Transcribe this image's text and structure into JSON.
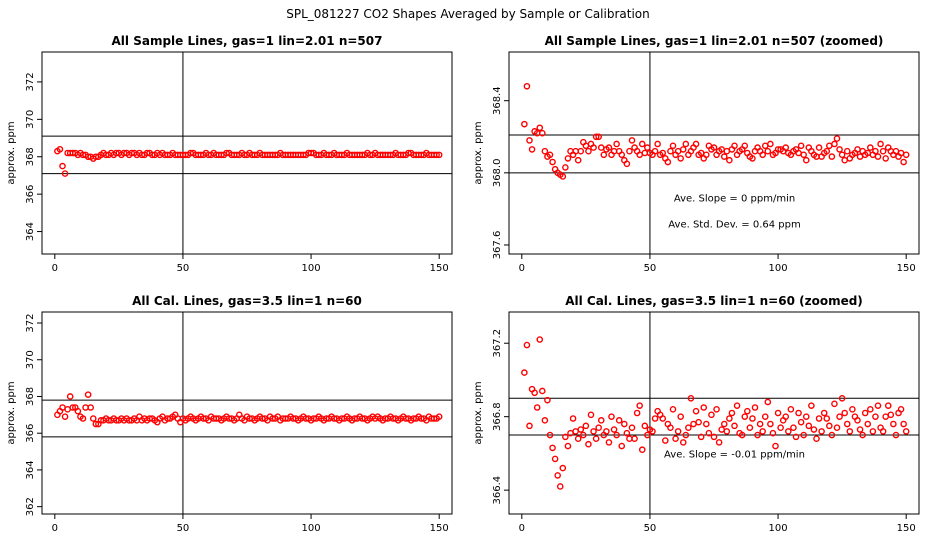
{
  "figure": {
    "main_title": "SPL_081227  CO2 Shapes Averaged by Sample or Calibration",
    "point_color": "#ff0000"
  },
  "chart_data": [
    {
      "type": "scatter",
      "title": "All Sample Lines, gas=1 lin=2.01 n=507",
      "xlabel": "",
      "ylabel": "approx. ppm",
      "xlim": [
        -5,
        155
      ],
      "ylim": [
        362.8,
        373.6
      ],
      "xticks": [
        0,
        50,
        100,
        150
      ],
      "yticks": [
        364,
        366,
        368,
        370,
        372
      ],
      "hlines": [
        369.1,
        367.1
      ],
      "vline": 50,
      "grid": false,
      "annotations": [],
      "x": [
        1,
        2,
        3,
        4,
        5,
        6,
        7,
        8,
        9,
        10,
        11,
        12,
        13,
        14,
        15,
        16,
        17,
        18,
        19,
        20,
        21,
        22,
        23,
        24,
        25,
        26,
        27,
        28,
        29,
        30,
        31,
        32,
        33,
        34,
        35,
        36,
        37,
        38,
        39,
        40,
        41,
        42,
        43,
        44,
        45,
        46,
        47,
        48,
        49,
        50,
        51,
        52,
        53,
        54,
        55,
        56,
        57,
        58,
        59,
        60,
        61,
        62,
        63,
        64,
        65,
        66,
        67,
        68,
        69,
        70,
        71,
        72,
        73,
        74,
        75,
        76,
        77,
        78,
        79,
        80,
        81,
        82,
        83,
        84,
        85,
        86,
        87,
        88,
        89,
        90,
        91,
        92,
        93,
        94,
        95,
        96,
        97,
        98,
        99,
        100,
        101,
        102,
        103,
        104,
        105,
        106,
        107,
        108,
        109,
        110,
        111,
        112,
        113,
        114,
        115,
        116,
        117,
        118,
        119,
        120,
        121,
        122,
        123,
        124,
        125,
        126,
        127,
        128,
        129,
        130,
        131,
        132,
        133,
        134,
        135,
        136,
        137,
        138,
        139,
        140,
        141,
        142,
        143,
        144,
        145,
        146,
        147,
        148,
        149,
        150
      ],
      "y": [
        368.3,
        368.4,
        367.5,
        367.1,
        368.2,
        368.2,
        368.2,
        368.2,
        368.1,
        368.2,
        368.1,
        368.1,
        368.0,
        368.0,
        367.9,
        368.0,
        368.0,
        368.1,
        368.2,
        368.1,
        368.1,
        368.2,
        368.1,
        368.2,
        368.2,
        368.1,
        368.2,
        368.2,
        368.1,
        368.2,
        368.2,
        368.1,
        368.2,
        368.1,
        368.1,
        368.2,
        368.2,
        368.1,
        368.1,
        368.2,
        368.1,
        368.2,
        368.1,
        368.1,
        368.1,
        368.2,
        368.1,
        368.1,
        368.1,
        368.1,
        368.1,
        368.1,
        368.2,
        368.2,
        368.1,
        368.1,
        368.1,
        368.1,
        368.2,
        368.1,
        368.1,
        368.2,
        368.1,
        368.1,
        368.1,
        368.1,
        368.2,
        368.2,
        368.1,
        368.1,
        368.1,
        368.1,
        368.2,
        368.1,
        368.1,
        368.2,
        368.1,
        368.1,
        368.1,
        368.2,
        368.1,
        368.1,
        368.1,
        368.1,
        368.1,
        368.1,
        368.1,
        368.2,
        368.1,
        368.1,
        368.1,
        368.1,
        368.1,
        368.1,
        368.1,
        368.1,
        368.1,
        368.1,
        368.2,
        368.2,
        368.2,
        368.1,
        368.1,
        368.1,
        368.2,
        368.1,
        368.1,
        368.1,
        368.2,
        368.1,
        368.1,
        368.1,
        368.1,
        368.2,
        368.1,
        368.1,
        368.1,
        368.1,
        368.1,
        368.1,
        368.1,
        368.2,
        368.1,
        368.1,
        368.2,
        368.1,
        368.1,
        368.1,
        368.1,
        368.1,
        368.1,
        368.1,
        368.2,
        368.1,
        368.1,
        368.1,
        368.1,
        368.2,
        368.2,
        368.1,
        368.1,
        368.1,
        368.1,
        368.1,
        368.2,
        368.1,
        368.1,
        368.1,
        368.1,
        368.1
      ]
    },
    {
      "type": "scatter",
      "title": "All Sample Lines, gas=1 lin=2.01 n=507 (zoomed)",
      "xlabel": "",
      "ylabel": "approx. ppm",
      "xlim": [
        -5,
        155
      ],
      "ylim": [
        367.55,
        368.67
      ],
      "xticks": [
        0,
        50,
        100,
        150
      ],
      "yticks": [
        367.6,
        368.0,
        368.4
      ],
      "hlines": [
        368.21,
        368.0
      ],
      "vline": 50,
      "grid": false,
      "annotations": [
        "Ave. Slope =  0  ppm/min",
        "Ave. Std. Dev. =  0.64  ppm"
      ],
      "x": [
        1,
        2,
        3,
        4,
        5,
        6,
        7,
        8,
        9,
        10,
        11,
        12,
        13,
        14,
        15,
        16,
        17,
        18,
        19,
        20,
        21,
        22,
        23,
        24,
        25,
        26,
        27,
        28,
        29,
        30,
        31,
        32,
        33,
        34,
        35,
        36,
        37,
        38,
        39,
        40,
        41,
        42,
        43,
        44,
        45,
        46,
        47,
        48,
        49,
        50,
        51,
        52,
        53,
        54,
        55,
        56,
        57,
        58,
        59,
        60,
        61,
        62,
        63,
        64,
        65,
        66,
        67,
        68,
        69,
        70,
        71,
        72,
        73,
        74,
        75,
        76,
        77,
        78,
        79,
        80,
        81,
        82,
        83,
        84,
        85,
        86,
        87,
        88,
        89,
        90,
        91,
        92,
        93,
        94,
        95,
        96,
        97,
        98,
        99,
        100,
        101,
        102,
        103,
        104,
        105,
        106,
        107,
        108,
        109,
        110,
        111,
        112,
        113,
        114,
        115,
        116,
        117,
        118,
        119,
        120,
        121,
        122,
        123,
        124,
        125,
        126,
        127,
        128,
        129,
        130,
        131,
        132,
        133,
        134,
        135,
        136,
        137,
        138,
        139,
        140,
        141,
        142,
        143,
        144,
        145,
        146,
        147,
        148,
        149,
        150
      ],
      "y": [
        368.27,
        368.48,
        368.18,
        368.13,
        368.23,
        368.22,
        368.25,
        368.22,
        368.12,
        368.09,
        368.1,
        368.06,
        368.02,
        368.0,
        367.99,
        367.98,
        368.03,
        368.08,
        368.12,
        368.1,
        368.12,
        368.07,
        368.12,
        368.17,
        368.15,
        368.12,
        368.16,
        368.14,
        368.2,
        368.2,
        368.14,
        368.1,
        368.13,
        368.14,
        368.1,
        368.12,
        368.16,
        368.12,
        368.1,
        368.07,
        368.05,
        368.12,
        368.18,
        368.14,
        368.12,
        368.1,
        368.16,
        368.11,
        368.14,
        368.11,
        368.1,
        368.12,
        368.16,
        368.1,
        368.11,
        368.08,
        368.06,
        368.12,
        368.15,
        368.1,
        368.12,
        368.08,
        368.13,
        368.16,
        368.1,
        368.12,
        368.14,
        368.16,
        368.1,
        368.11,
        368.08,
        368.1,
        368.15,
        368.13,
        368.14,
        368.1,
        368.12,
        368.13,
        368.09,
        368.12,
        368.07,
        368.13,
        368.15,
        368.1,
        368.12,
        368.13,
        368.15,
        368.11,
        368.09,
        368.08,
        368.12,
        368.14,
        368.12,
        368.1,
        368.15,
        368.12,
        368.16,
        368.1,
        368.11,
        368.13,
        368.13,
        368.12,
        368.14,
        368.11,
        368.1,
        368.12,
        368.13,
        368.11,
        368.15,
        368.1,
        368.07,
        368.14,
        368.12,
        368.1,
        368.09,
        368.14,
        368.09,
        368.11,
        368.12,
        368.15,
        368.09,
        368.16,
        368.19,
        368.13,
        368.1,
        368.07,
        368.12,
        368.08,
        368.1,
        368.11,
        368.13,
        368.09,
        368.12,
        368.1,
        368.11,
        368.14,
        368.1,
        368.12,
        368.09,
        368.16,
        368.12,
        368.08,
        368.14,
        368.12,
        368.1,
        368.12,
        368.09,
        368.11,
        368.06,
        368.1
      ]
    },
    {
      "type": "scatter",
      "title": "All Cal. Lines, gas=3.5 lin=1 n=60",
      "xlabel": "",
      "ylabel": "approx. ppm",
      "xlim": [
        -5,
        155
      ],
      "ylim": [
        361.6,
        372.6
      ],
      "xticks": [
        0,
        50,
        100,
        150
      ],
      "yticks": [
        362,
        364,
        366,
        368,
        370,
        372
      ],
      "hlines": [
        367.8,
        365.8
      ],
      "vline": 50,
      "grid": false,
      "annotations": [],
      "x": [
        1,
        2,
        3,
        4,
        5,
        6,
        7,
        8,
        9,
        10,
        11,
        12,
        13,
        14,
        15,
        16,
        17,
        18,
        19,
        20,
        21,
        22,
        23,
        24,
        25,
        26,
        27,
        28,
        29,
        30,
        31,
        32,
        33,
        34,
        35,
        36,
        37,
        38,
        39,
        40,
        41,
        42,
        43,
        44,
        45,
        46,
        47,
        48,
        49,
        50,
        51,
        52,
        53,
        54,
        55,
        56,
        57,
        58,
        59,
        60,
        61,
        62,
        63,
        64,
        65,
        66,
        67,
        68,
        69,
        70,
        71,
        72,
        73,
        74,
        75,
        76,
        77,
        78,
        79,
        80,
        81,
        82,
        83,
        84,
        85,
        86,
        87,
        88,
        89,
        90,
        91,
        92,
        93,
        94,
        95,
        96,
        97,
        98,
        99,
        100,
        101,
        102,
        103,
        104,
        105,
        106,
        107,
        108,
        109,
        110,
        111,
        112,
        113,
        114,
        115,
        116,
        117,
        118,
        119,
        120,
        121,
        122,
        123,
        124,
        125,
        126,
        127,
        128,
        129,
        130,
        131,
        132,
        133,
        134,
        135,
        136,
        137,
        138,
        139,
        140,
        141,
        142,
        143,
        144,
        145,
        146,
        147,
        148,
        149,
        150
      ],
      "y": [
        367.0,
        367.2,
        367.4,
        366.9,
        367.3,
        368.0,
        367.4,
        367.4,
        367.2,
        366.9,
        366.8,
        367.4,
        368.1,
        367.4,
        366.8,
        366.5,
        366.5,
        366.7,
        366.7,
        366.8,
        366.7,
        366.7,
        366.8,
        366.7,
        366.7,
        366.8,
        366.7,
        366.8,
        366.7,
        366.7,
        366.8,
        366.7,
        366.9,
        366.7,
        366.8,
        366.7,
        366.8,
        366.8,
        366.7,
        366.6,
        366.8,
        366.9,
        366.7,
        366.8,
        366.8,
        366.9,
        367.0,
        366.8,
        366.6,
        366.8,
        366.7,
        366.8,
        366.9,
        366.8,
        366.7,
        366.8,
        366.9,
        366.8,
        366.8,
        366.7,
        366.9,
        366.8,
        366.8,
        366.8,
        366.7,
        366.8,
        366.9,
        366.8,
        366.8,
        366.7,
        366.8,
        367.0,
        366.8,
        366.7,
        366.9,
        366.8,
        366.8,
        366.7,
        366.8,
        366.9,
        366.8,
        366.8,
        366.7,
        366.9,
        366.8,
        366.8,
        366.9,
        366.7,
        366.8,
        366.8,
        366.8,
        366.9,
        366.8,
        366.8,
        366.7,
        366.8,
        366.9,
        366.8,
        366.8,
        366.7,
        366.8,
        366.8,
        366.9,
        366.8,
        366.7,
        366.8,
        366.8,
        366.9,
        366.8,
        366.8,
        366.7,
        366.8,
        366.8,
        366.9,
        366.8,
        366.7,
        366.8,
        366.8,
        366.9,
        366.8,
        366.8,
        366.7,
        366.8,
        366.9,
        366.8,
        366.9,
        366.8,
        366.7,
        366.8,
        366.8,
        366.9,
        366.8,
        366.8,
        366.7,
        366.8,
        366.9,
        366.8,
        366.8,
        366.7,
        366.8,
        366.8,
        366.9,
        366.8,
        366.8,
        366.7,
        366.9,
        366.8,
        366.8,
        366.8,
        366.9
      ]
    },
    {
      "type": "scatter",
      "title": "All Cal. Lines, gas=3.5 lin=1 n=60 (zoomed)",
      "xlabel": "",
      "ylabel": "approx. ppm",
      "xlim": [
        -5,
        155
      ],
      "ylim": [
        366.27,
        367.37
      ],
      "xticks": [
        0,
        50,
        100,
        150
      ],
      "yticks": [
        366.4,
        366.8,
        367.2
      ],
      "hlines": [
        366.9,
        366.7
      ],
      "vline": 50,
      "grid": false,
      "annotations": [
        "Ave. Slope = -0.01  ppm/min"
      ],
      "x": [
        1,
        2,
        3,
        4,
        5,
        6,
        7,
        8,
        9,
        10,
        11,
        12,
        13,
        14,
        15,
        16,
        17,
        18,
        19,
        20,
        21,
        22,
        23,
        24,
        25,
        26,
        27,
        28,
        29,
        30,
        31,
        32,
        33,
        34,
        35,
        36,
        37,
        38,
        39,
        40,
        41,
        42,
        43,
        44,
        45,
        46,
        47,
        48,
        49,
        50,
        51,
        52,
        53,
        54,
        55,
        56,
        57,
        58,
        59,
        60,
        61,
        62,
        63,
        64,
        65,
        66,
        67,
        68,
        69,
        70,
        71,
        72,
        73,
        74,
        75,
        76,
        77,
        78,
        79,
        80,
        81,
        82,
        83,
        84,
        85,
        86,
        87,
        88,
        89,
        90,
        91,
        92,
        93,
        94,
        95,
        96,
        97,
        98,
        99,
        100,
        101,
        102,
        103,
        104,
        105,
        106,
        107,
        108,
        109,
        110,
        111,
        112,
        113,
        114,
        115,
        116,
        117,
        118,
        119,
        120,
        121,
        122,
        123,
        124,
        125,
        126,
        127,
        128,
        129,
        130,
        131,
        132,
        133,
        134,
        135,
        136,
        137,
        138,
        139,
        140,
        141,
        142,
        143,
        144,
        145,
        146,
        147,
        148,
        149,
        150
      ],
      "y": [
        367.04,
        367.19,
        366.75,
        366.95,
        366.93,
        366.85,
        367.22,
        366.94,
        366.78,
        366.89,
        366.7,
        366.63,
        366.57,
        366.48,
        366.42,
        366.52,
        366.69,
        366.64,
        366.71,
        366.79,
        366.72,
        366.68,
        366.73,
        366.7,
        366.75,
        366.65,
        366.81,
        366.72,
        366.68,
        366.74,
        366.78,
        366.7,
        366.72,
        366.66,
        366.8,
        366.73,
        366.7,
        366.78,
        366.64,
        366.76,
        366.71,
        366.68,
        366.74,
        366.68,
        366.82,
        366.86,
        366.62,
        366.75,
        366.7,
        366.73,
        366.72,
        366.79,
        366.83,
        366.81,
        366.79,
        366.67,
        366.76,
        366.74,
        366.84,
        366.68,
        366.72,
        366.8,
        366.66,
        366.7,
        366.74,
        366.9,
        366.76,
        366.83,
        366.77,
        366.69,
        366.85,
        366.76,
        366.71,
        366.81,
        366.69,
        366.84,
        366.66,
        366.73,
        366.76,
        366.72,
        366.79,
        366.82,
        366.75,
        366.86,
        366.71,
        366.7,
        366.8,
        366.83,
        366.74,
        366.79,
        366.85,
        366.7,
        366.76,
        366.72,
        366.8,
        366.88,
        366.76,
        366.71,
        366.64,
        366.82,
        366.74,
        366.78,
        366.8,
        366.72,
        366.84,
        366.74,
        366.69,
        366.82,
        366.77,
        366.7,
        366.8,
        366.75,
        366.86,
        366.73,
        366.68,
        366.79,
        366.72,
        366.82,
        366.79,
        366.75,
        366.7,
        366.87,
        366.74,
        366.8,
        366.9,
        366.82,
        366.76,
        366.72,
        366.84,
        366.8,
        366.78,
        366.73,
        366.7,
        366.82,
        366.76,
        366.84,
        366.72,
        366.8,
        366.86,
        366.74,
        366.72,
        366.8,
        366.86,
        366.81,
        366.76,
        366.7,
        366.82,
        366.84,
        366.76,
        366.72
      ]
    }
  ]
}
